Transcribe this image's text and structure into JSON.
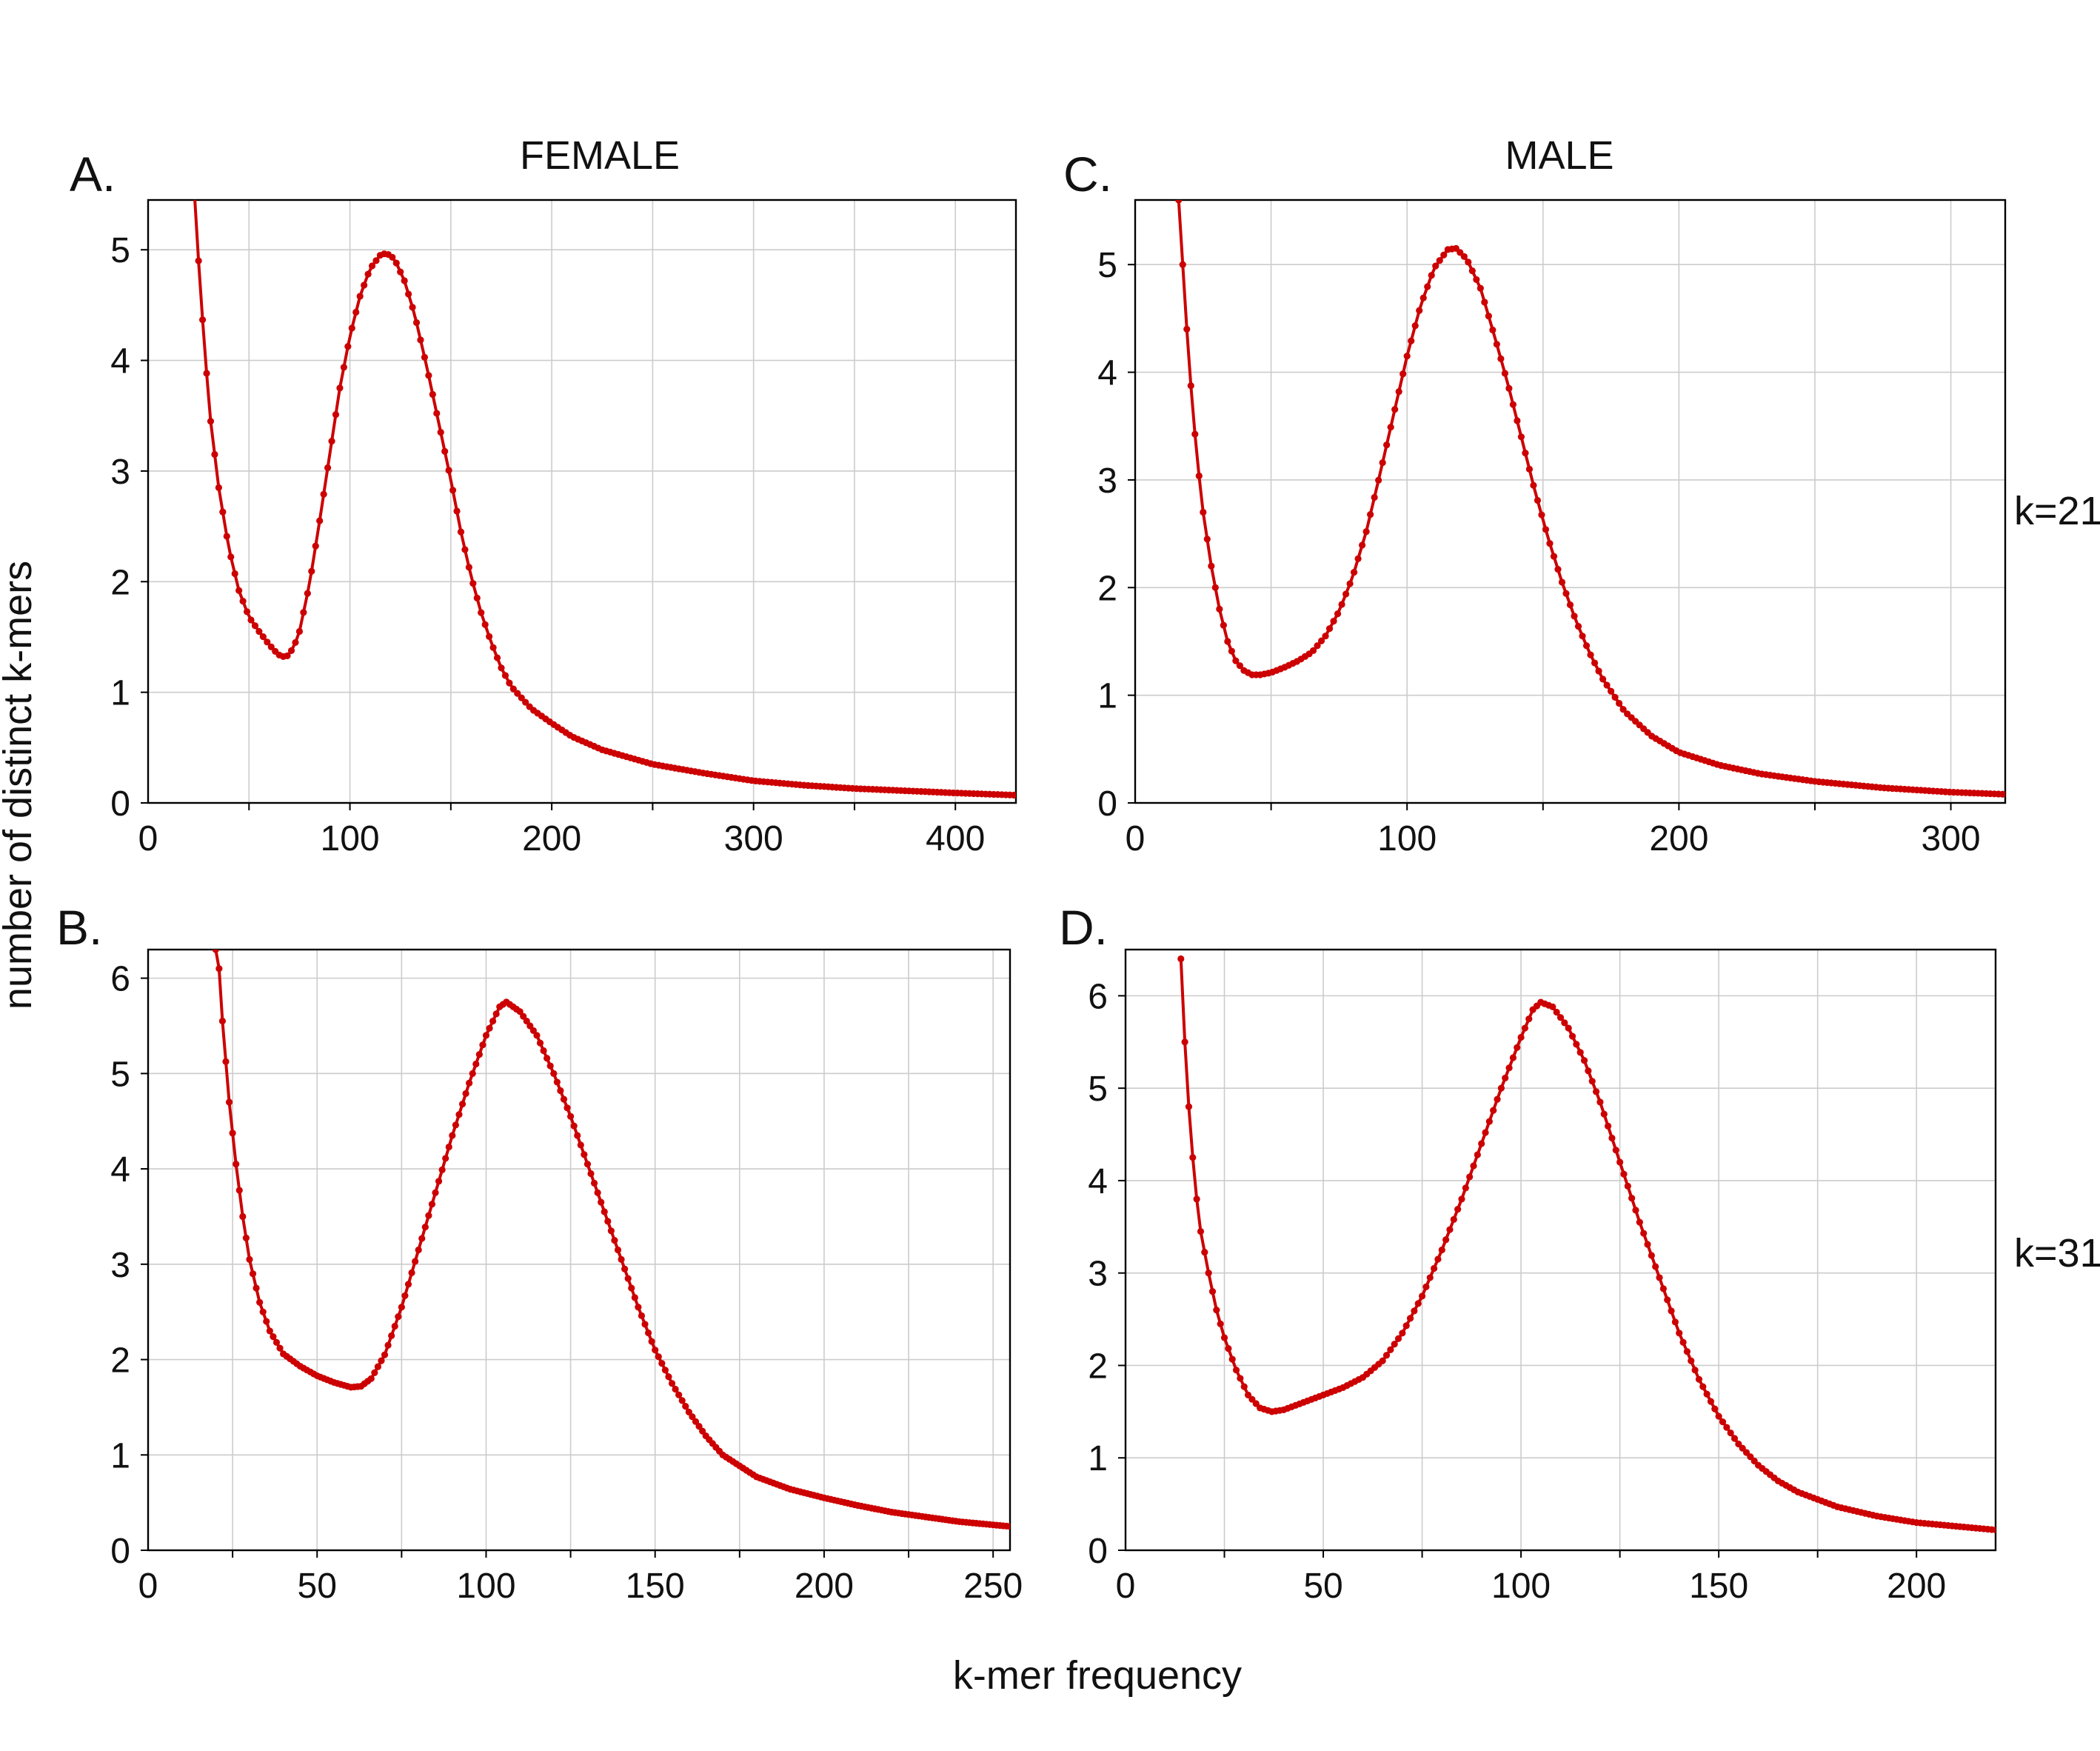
{
  "figure": {
    "ylabel": "number of distinct k-mers",
    "xlabel": "k-mer frequency",
    "col_titles": [
      "FEMALE",
      "MALE"
    ],
    "row_labels": [
      "k=21",
      "k=31"
    ],
    "colors": {
      "series": "#cc0000",
      "grid": "#cccccc",
      "frame": "#000000"
    }
  },
  "chart_data": [
    {
      "type": "line",
      "panel": "A.",
      "column": "FEMALE",
      "row": "k=21",
      "xlim": [
        0,
        430
      ],
      "ylim": [
        0,
        5.45
      ],
      "xticks": [
        0,
        100,
        200,
        300,
        400
      ],
      "yticks": [
        0,
        1,
        2,
        3,
        4,
        5
      ],
      "xgrid": [
        50,
        100,
        150,
        200,
        250,
        300,
        350,
        400
      ],
      "ygrid": [
        1,
        2,
        3,
        4,
        5
      ],
      "curve": {
        "start": 23,
        "end": 430,
        "step": 2
      },
      "series": [
        {
          "points": [
            [
              23,
              5.5
            ],
            [
              25,
              4.9
            ],
            [
              28,
              4.1
            ],
            [
              31,
              3.45
            ],
            [
              35,
              2.85
            ],
            [
              40,
              2.3
            ],
            [
              45,
              1.92
            ],
            [
              50,
              1.68
            ],
            [
              55,
              1.55
            ],
            [
              60,
              1.43
            ],
            [
              63,
              1.37
            ],
            [
              66,
              1.32
            ],
            [
              69,
              1.33
            ],
            [
              72,
              1.4
            ],
            [
              75,
              1.55
            ],
            [
              80,
              1.98
            ],
            [
              85,
              2.55
            ],
            [
              90,
              3.15
            ],
            [
              95,
              3.75
            ],
            [
              100,
              4.22
            ],
            [
              105,
              4.58
            ],
            [
              110,
              4.83
            ],
            [
              115,
              4.95
            ],
            [
              118,
              4.97
            ],
            [
              122,
              4.92
            ],
            [
              127,
              4.72
            ],
            [
              132,
              4.42
            ],
            [
              138,
              3.95
            ],
            [
              145,
              3.35
            ],
            [
              150,
              2.92
            ],
            [
              155,
              2.45
            ],
            [
              160,
              2.05
            ],
            [
              165,
              1.72
            ],
            [
              170,
              1.45
            ],
            [
              175,
              1.22
            ],
            [
              180,
              1.05
            ],
            [
              190,
              0.85
            ],
            [
              200,
              0.72
            ],
            [
              210,
              0.6
            ],
            [
              225,
              0.48
            ],
            [
              250,
              0.35
            ],
            [
              275,
              0.27
            ],
            [
              300,
              0.2
            ],
            [
              325,
              0.16
            ],
            [
              350,
              0.13
            ],
            [
              375,
              0.11
            ],
            [
              400,
              0.09
            ],
            [
              430,
              0.07
            ]
          ]
        }
      ]
    },
    {
      "type": "line",
      "panel": "B.",
      "column": "FEMALE",
      "row": "k=31",
      "xlim": [
        0,
        255
      ],
      "ylim": [
        0,
        6.3
      ],
      "xticks": [
        0,
        50,
        100,
        150,
        200,
        250
      ],
      "yticks": [
        0,
        1,
        2,
        3,
        4,
        5,
        6
      ],
      "xgrid": [
        25,
        50,
        75,
        100,
        125,
        150,
        175,
        200,
        225,
        250
      ],
      "ygrid": [
        1,
        2,
        3,
        4,
        5,
        6
      ],
      "curve": {
        "start": 20,
        "end": 255,
        "step": 1
      },
      "series": [
        {
          "points": [
            [
              20,
              6.3
            ],
            [
              21,
              6.1
            ],
            [
              22,
              5.55
            ],
            [
              24,
              4.7
            ],
            [
              26,
              4.05
            ],
            [
              28,
              3.5
            ],
            [
              30,
              3.05
            ],
            [
              33,
              2.6
            ],
            [
              36,
              2.3
            ],
            [
              40,
              2.06
            ],
            [
              45,
              1.93
            ],
            [
              50,
              1.83
            ],
            [
              55,
              1.76
            ],
            [
              60,
              1.71
            ],
            [
              63,
              1.72
            ],
            [
              66,
              1.8
            ],
            [
              70,
              2.05
            ],
            [
              75,
              2.55
            ],
            [
              80,
              3.15
            ],
            [
              85,
              3.75
            ],
            [
              90,
              4.35
            ],
            [
              95,
              4.9
            ],
            [
              100,
              5.4
            ],
            [
              104,
              5.7
            ],
            [
              106,
              5.75
            ],
            [
              110,
              5.65
            ],
            [
              115,
              5.4
            ],
            [
              120,
              5.0
            ],
            [
              125,
              4.55
            ],
            [
              130,
              4.05
            ],
            [
              135,
              3.55
            ],
            [
              140,
              3.05
            ],
            [
              145,
              2.55
            ],
            [
              150,
              2.1
            ],
            [
              155,
              1.75
            ],
            [
              160,
              1.45
            ],
            [
              165,
              1.2
            ],
            [
              170,
              1.0
            ],
            [
              180,
              0.77
            ],
            [
              190,
              0.64
            ],
            [
              200,
              0.55
            ],
            [
              210,
              0.47
            ],
            [
              220,
              0.4
            ],
            [
              230,
              0.35
            ],
            [
              240,
              0.3
            ],
            [
              255,
              0.25
            ]
          ]
        }
      ]
    },
    {
      "type": "line",
      "panel": "C.",
      "column": "MALE",
      "row": "k=21",
      "xlim": [
        0,
        320
      ],
      "ylim": [
        0,
        5.6
      ],
      "xticks": [
        0,
        100,
        200,
        300
      ],
      "yticks": [
        0,
        1,
        2,
        3,
        4,
        5
      ],
      "xgrid": [
        50,
        100,
        150,
        200,
        250,
        300
      ],
      "ygrid": [
        1,
        2,
        3,
        4,
        5
      ],
      "curve": {
        "start": 16,
        "end": 320,
        "step": 1.5
      },
      "series": [
        {
          "points": [
            [
              16,
              5.6
            ],
            [
              17,
              5.2
            ],
            [
              19,
              4.4
            ],
            [
              21,
              3.7
            ],
            [
              23,
              3.15
            ],
            [
              25,
              2.7
            ],
            [
              28,
              2.2
            ],
            [
              31,
              1.8
            ],
            [
              34,
              1.5
            ],
            [
              37,
              1.32
            ],
            [
              40,
              1.23
            ],
            [
              43,
              1.19
            ],
            [
              46,
              1.19
            ],
            [
              50,
              1.21
            ],
            [
              55,
              1.26
            ],
            [
              60,
              1.32
            ],
            [
              65,
              1.4
            ],
            [
              70,
              1.55
            ],
            [
              75,
              1.78
            ],
            [
              80,
              2.1
            ],
            [
              85,
              2.52
            ],
            [
              90,
              3.05
            ],
            [
              95,
              3.6
            ],
            [
              100,
              4.15
            ],
            [
              105,
              4.62
            ],
            [
              110,
              4.97
            ],
            [
              115,
              5.14
            ],
            [
              118,
              5.15
            ],
            [
              122,
              5.05
            ],
            [
              127,
              4.78
            ],
            [
              132,
              4.35
            ],
            [
              137,
              3.9
            ],
            [
              142,
              3.4
            ],
            [
              147,
              2.9
            ],
            [
              152,
              2.45
            ],
            [
              157,
              2.05
            ],
            [
              162,
              1.7
            ],
            [
              167,
              1.4
            ],
            [
              172,
              1.15
            ],
            [
              180,
              0.85
            ],
            [
              190,
              0.62
            ],
            [
              200,
              0.47
            ],
            [
              215,
              0.35
            ],
            [
              230,
              0.27
            ],
            [
              250,
              0.2
            ],
            [
              275,
              0.14
            ],
            [
              300,
              0.1
            ],
            [
              320,
              0.08
            ]
          ]
        }
      ]
    },
    {
      "type": "line",
      "panel": "D.",
      "column": "MALE",
      "row": "k=31",
      "xlim": [
        0,
        220
      ],
      "ylim": [
        0,
        6.5
      ],
      "xticks": [
        0,
        50,
        100,
        150,
        200
      ],
      "yticks": [
        0,
        1,
        2,
        3,
        4,
        5,
        6
      ],
      "xgrid": [
        25,
        50,
        75,
        100,
        125,
        150,
        175,
        200
      ],
      "ygrid": [
        1,
        2,
        3,
        4,
        5,
        6
      ],
      "curve": {
        "start": 14,
        "end": 220,
        "step": 1
      },
      "series": [
        {
          "points": [
            [
              14,
              6.4
            ],
            [
              15,
              5.5
            ],
            [
              16,
              4.8
            ],
            [
              17,
              4.25
            ],
            [
              18,
              3.8
            ],
            [
              19,
              3.45
            ],
            [
              21,
              3.0
            ],
            [
              23,
              2.6
            ],
            [
              25,
              2.3
            ],
            [
              28,
              1.95
            ],
            [
              31,
              1.68
            ],
            [
              34,
              1.54
            ],
            [
              37,
              1.5
            ],
            [
              40,
              1.52
            ],
            [
              45,
              1.6
            ],
            [
              50,
              1.68
            ],
            [
              55,
              1.76
            ],
            [
              60,
              1.87
            ],
            [
              65,
              2.05
            ],
            [
              70,
              2.35
            ],
            [
              75,
              2.75
            ],
            [
              80,
              3.25
            ],
            [
              85,
              3.8
            ],
            [
              90,
              4.4
            ],
            [
              95,
              5.0
            ],
            [
              100,
              5.55
            ],
            [
              103,
              5.85
            ],
            [
              105,
              5.93
            ],
            [
              108,
              5.88
            ],
            [
              112,
              5.65
            ],
            [
              116,
              5.3
            ],
            [
              120,
              4.85
            ],
            [
              125,
              4.2
            ],
            [
              130,
              3.55
            ],
            [
              135,
              2.95
            ],
            [
              140,
              2.35
            ],
            [
              145,
              1.85
            ],
            [
              150,
              1.45
            ],
            [
              155,
              1.15
            ],
            [
              160,
              0.92
            ],
            [
              165,
              0.75
            ],
            [
              170,
              0.63
            ],
            [
              180,
              0.47
            ],
            [
              190,
              0.37
            ],
            [
              200,
              0.3
            ],
            [
              210,
              0.26
            ],
            [
              220,
              0.22
            ]
          ]
        }
      ]
    }
  ]
}
